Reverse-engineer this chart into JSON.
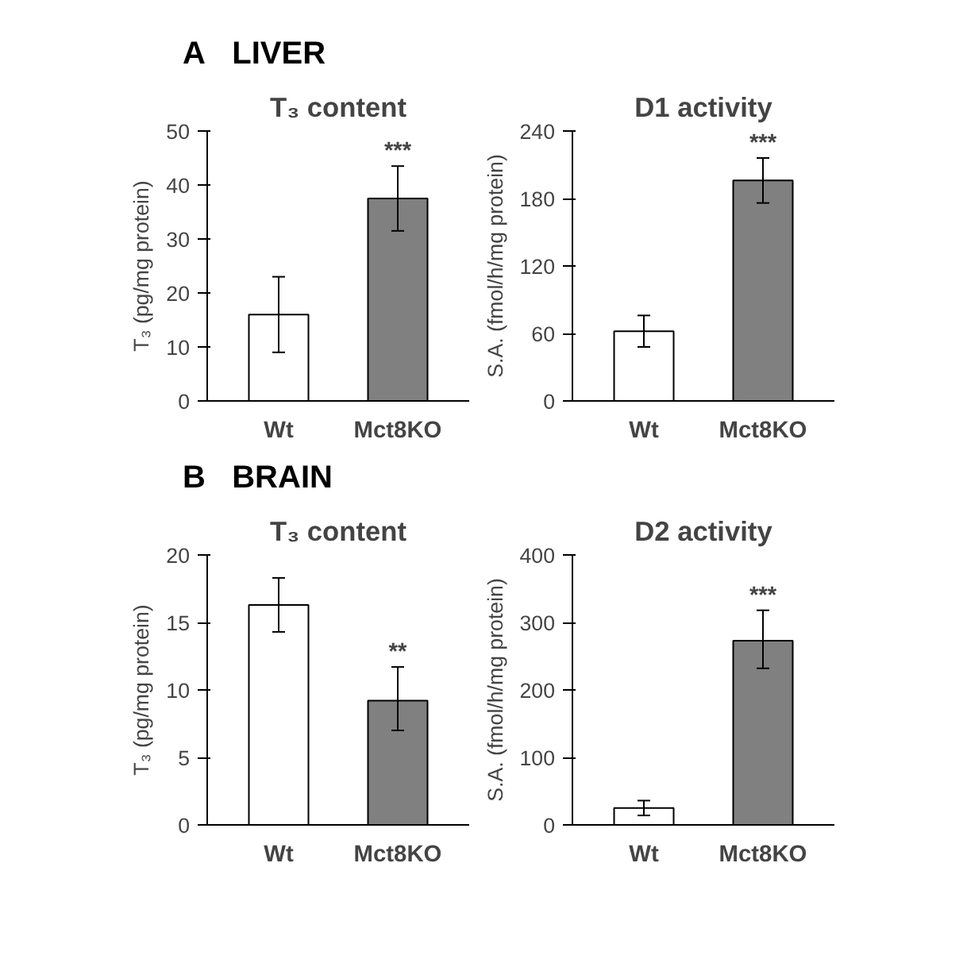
{
  "chart_data": [
    {
      "type": "bar",
      "annotations": [
        "A   LIVER",
        "***"
      ],
      "title": "T₃ content",
      "ylabel": "T₃ (pg/mg protein)",
      "categories": [
        "Wt",
        "Mct8KO"
      ],
      "values": [
        16,
        37.5
      ],
      "colors": [
        "#ffffff",
        "#808080"
      ],
      "errors": [
        7,
        6
      ],
      "ylim": [
        0,
        50
      ],
      "yticks": [
        0,
        10,
        20,
        30,
        40,
        50
      ],
      "grid": false
    },
    {
      "type": "bar",
      "title": "D1 activity",
      "ylabel": "S.A. (fmol/h/mg protein)",
      "annotations": [
        "***"
      ],
      "categories": [
        "Wt",
        "Mct8KO"
      ],
      "values": [
        62,
        196
      ],
      "colors": [
        "#ffffff",
        "#808080"
      ],
      "errors": [
        [
          48,
          76
        ],
        20
      ],
      "ylim": [
        0,
        240
      ],
      "yticks": [
        0,
        60,
        120,
        180,
        240
      ],
      "grid": false
    },
    {
      "type": "bar",
      "annotations": [
        "B   BRAIN",
        "**"
      ],
      "title": "T₃ content",
      "ylabel": "T₃ (pg/mg protein)",
      "categories": [
        "Wt",
        "Mct8KO"
      ],
      "values": [
        16.3,
        9.2
      ],
      "colors": [
        "#ffffff",
        "#808080"
      ],
      "errors": [
        2,
        [
          7,
          11.7
        ]
      ],
      "ylim": [
        0,
        20
      ],
      "yticks": [
        0,
        5,
        10,
        15,
        20
      ],
      "grid": false
    },
    {
      "type": "bar",
      "title": "D2 activity",
      "ylabel": "S.A. (fmol/h/mg protein)",
      "annotations": [
        "***"
      ],
      "categories": [
        "Wt",
        "Mct8KO"
      ],
      "values": [
        25,
        273
      ],
      "colors": [
        "#ffffff",
        "#808080"
      ],
      "errors": [
        11,
        [
          232,
          318
        ]
      ],
      "ylim": [
        0,
        400
      ],
      "yticks": [
        0,
        100,
        200,
        300,
        400
      ],
      "grid": false
    }
  ]
}
